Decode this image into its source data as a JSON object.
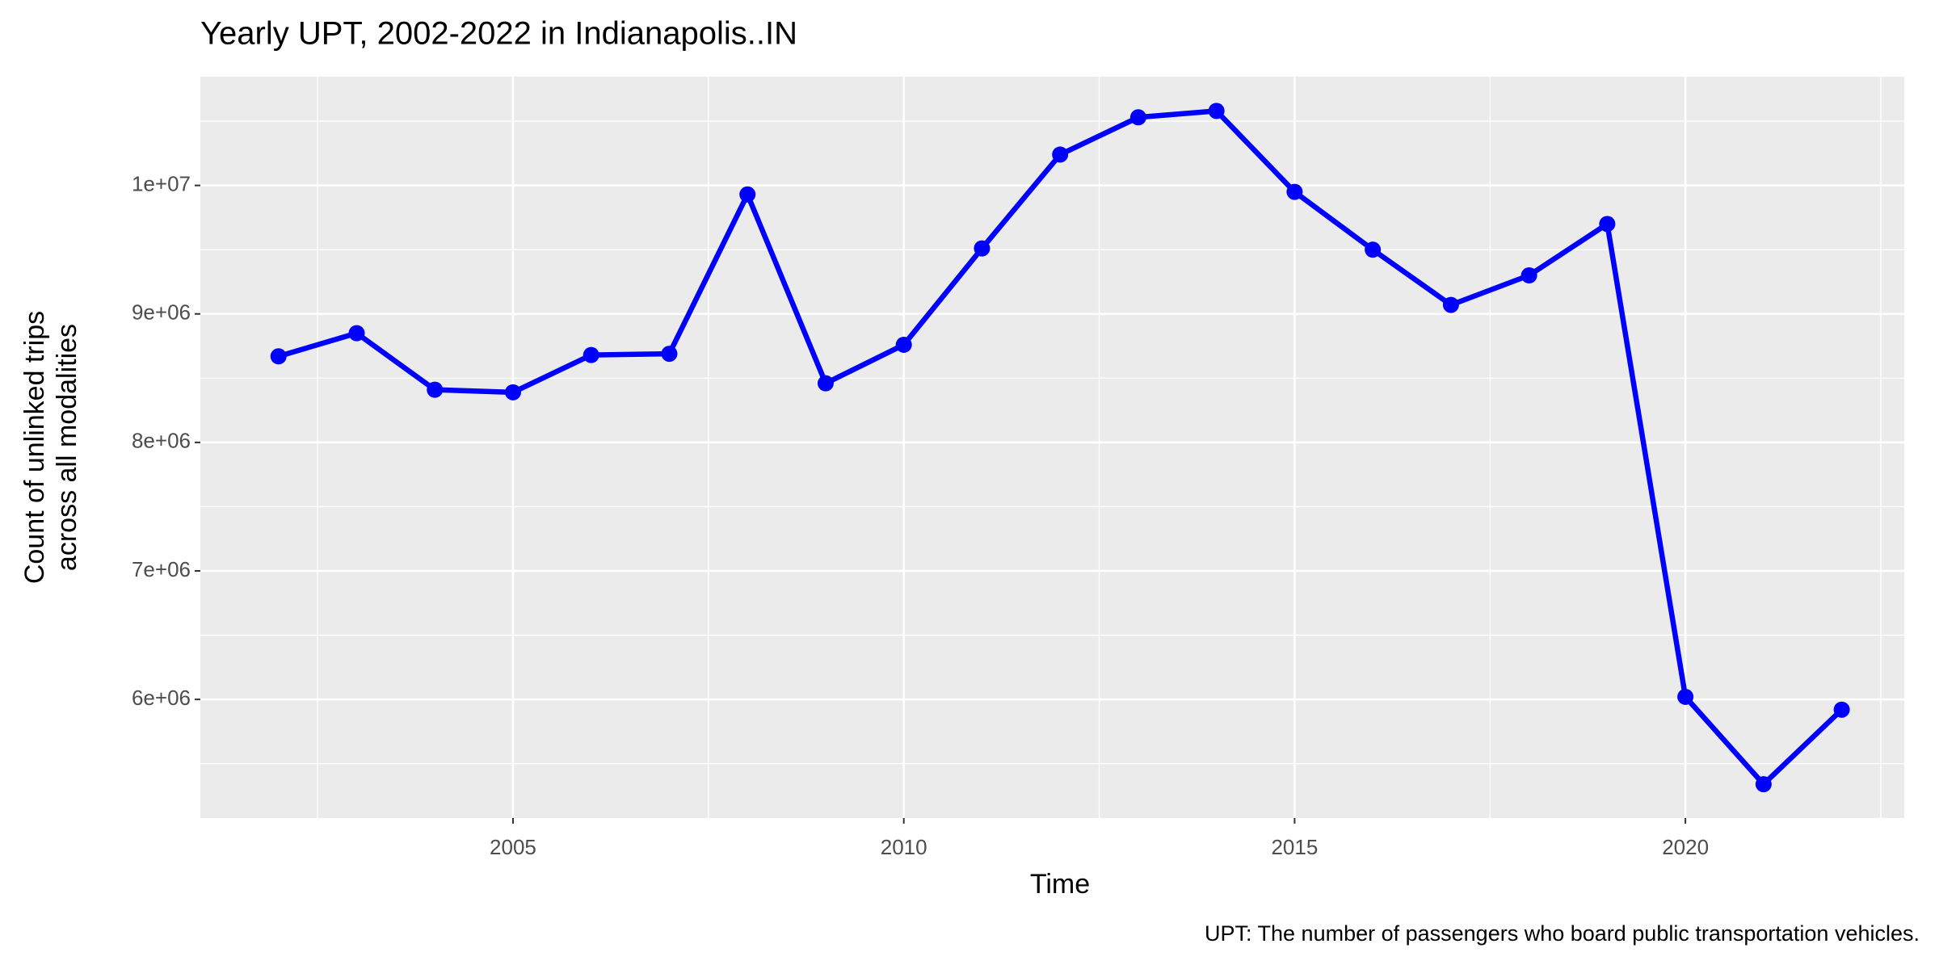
{
  "chart_data": {
    "type": "line",
    "title": "Yearly UPT, 2002-2022 in Indianapolis..IN",
    "x_label": "Time",
    "y_label": [
      "Count of unlinked trips",
      "across all modalities"
    ],
    "caption": "UPT: The number of passengers who board public transportation vehicles.",
    "x": [
      2002,
      2003,
      2004,
      2005,
      2006,
      2007,
      2008,
      2009,
      2010,
      2011,
      2012,
      2013,
      2014,
      2015,
      2016,
      2017,
      2018,
      2019,
      2020,
      2021,
      2022
    ],
    "series": [
      {
        "name": "UPT",
        "color": "#0000ff",
        "values": [
          8670000,
          8850000,
          8410000,
          8390000,
          8680000,
          8690000,
          9930000,
          8460000,
          8760000,
          9510000,
          10240000,
          10530000,
          10580000,
          9950000,
          9500000,
          9070000,
          9300000,
          9700000,
          6020000,
          5340000,
          5920000
        ]
      }
    ],
    "xlim": [
      2001,
      2022.8
    ],
    "xticks": [
      2005,
      2010,
      2015,
      2020
    ],
    "ylim": [
      5077000,
      10846000
    ],
    "yticks": [
      {
        "value": 6000000,
        "label": "6e+06"
      },
      {
        "value": 7000000,
        "label": "7e+06"
      },
      {
        "value": 8000000,
        "label": "8e+06"
      },
      {
        "value": 9000000,
        "label": "9e+06"
      },
      {
        "value": 10000000,
        "label": "1e+07"
      }
    ],
    "grid": true
  }
}
